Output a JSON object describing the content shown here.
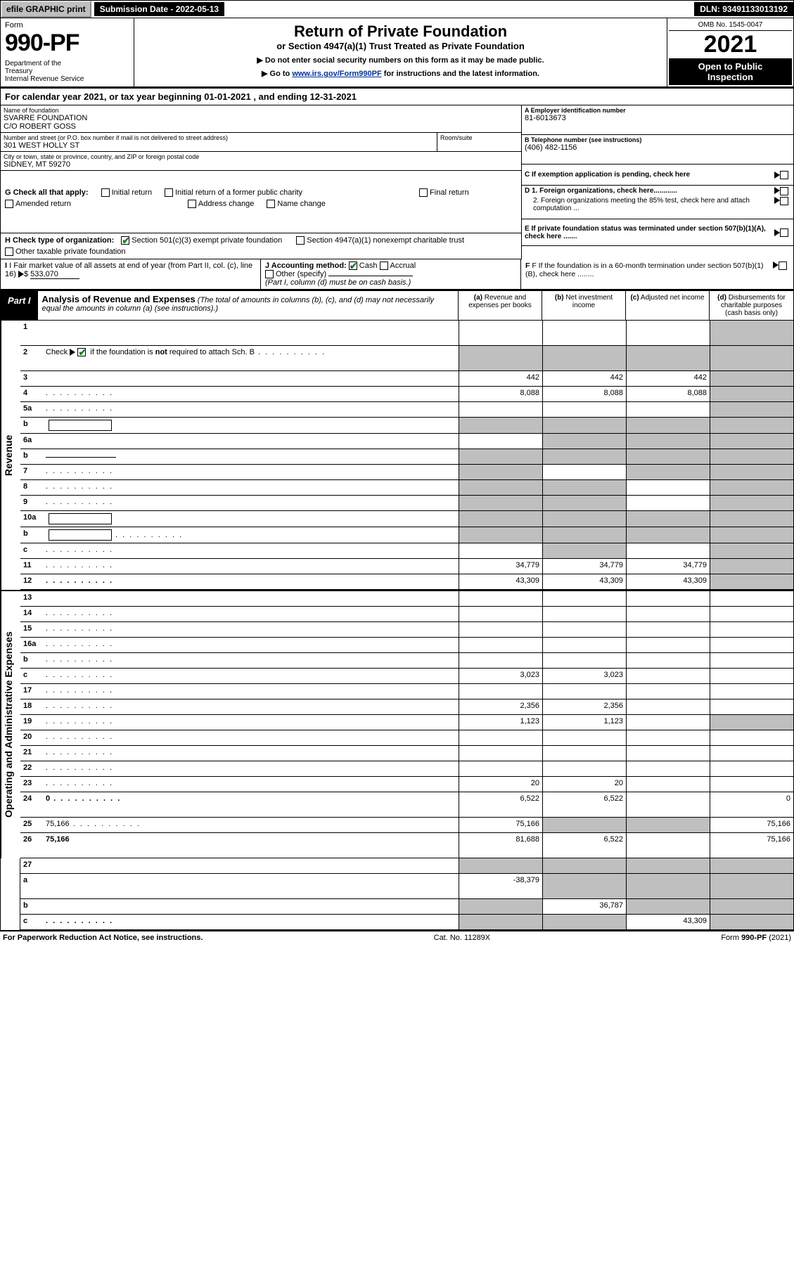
{
  "top": {
    "efile": "efile GRAPHIC print",
    "submission": "Submission Date - 2022-05-13",
    "dln": "DLN: 93491133013192"
  },
  "header": {
    "form_word": "Form",
    "form_num": "990-PF",
    "dept": "Department of the Treasury\nInternal Revenue Service",
    "title": "Return of Private Foundation",
    "subtitle": "or Section 4947(a)(1) Trust Treated as Private Foundation",
    "note1": "▶ Do not enter social security numbers on this form as it may be made public.",
    "note2_pre": "▶ Go to ",
    "note2_link": "www.irs.gov/Form990PF",
    "note2_post": " for instructions and the latest information.",
    "omb": "OMB No. 1545-0047",
    "year": "2021",
    "open": "Open to Public Inspection"
  },
  "cal_year": "For calendar year 2021, or tax year beginning 01-01-2021             , and ending 12-31-2021",
  "name_label": "Name of foundation",
  "name_val": "SVARRE FOUNDATION\nC/O ROBERT GOSS",
  "ein_label": "A Employer identification number",
  "ein_val": "81-6013673",
  "addr_label": "Number and street (or P.O. box number if mail is not delivered to street address)",
  "addr_val": "301 WEST HOLLY ST",
  "room_label": "Room/suite",
  "phone_label": "B Telephone number (see instructions)",
  "phone_val": "(406) 482-1156",
  "city_label": "City or town, state or province, country, and ZIP or foreign postal code",
  "city_val": "SIDNEY, MT  59270",
  "c_label": "C If exemption application is pending, check here",
  "g_label": "G Check all that apply:",
  "g_opts": [
    "Initial return",
    "Initial return of a former public charity",
    "Final return",
    "Amended return",
    "Address change",
    "Name change"
  ],
  "d1": "D 1. Foreign organizations, check here............",
  "d2": "2. Foreign organizations meeting the 85% test, check here and attach computation ...",
  "h_label": "H Check type of organization:",
  "h_opt1": "Section 501(c)(3) exempt private foundation",
  "h_opt2": "Section 4947(a)(1) nonexempt charitable trust",
  "h_opt3": "Other taxable private foundation",
  "e_label": "E  If private foundation status was terminated under section 507(b)(1)(A), check here .......",
  "i_label": "I Fair market value of all assets at end of year (from Part II, col. (c), line 16)",
  "i_val": "533,070",
  "j_label": "J Accounting method:",
  "j_cash": "Cash",
  "j_accrual": "Accrual",
  "j_other": "Other (specify)",
  "j_note": "(Part I, column (d) must be on cash basis.)",
  "f_label": "F  If the foundation is in a 60-month termination under section 507(b)(1)(B), check here ........",
  "part1_label": "Part I",
  "part1_title": "Analysis of Revenue and Expenses",
  "part1_sub": "(The total of amounts in columns (b), (c), and (d) may not necessarily equal the amounts in column (a) (see instructions).)",
  "col_a": "(a)  Revenue and expenses per books",
  "col_b": "(b)  Net investment income",
  "col_c": "(c)  Adjusted net income",
  "col_d": "(d)  Disbursements for charitable purposes (cash basis only)",
  "side_rev": "Revenue",
  "side_exp": "Operating and Administrative Expenses",
  "rows": {
    "r1": {
      "n": "1",
      "d": "",
      "a": "",
      "b": "",
      "c": "",
      "tall": true,
      "greyD": true
    },
    "r2": {
      "n": "2",
      "d": "",
      "a": "",
      "b": "",
      "c": "",
      "tall": true,
      "greyA": true,
      "greyB": true,
      "greyC": true,
      "greyD": true,
      "checked": true,
      "dots": true
    },
    "r3": {
      "n": "3",
      "d": "",
      "a": "442",
      "b": "442",
      "c": "442",
      "greyD": true
    },
    "r4": {
      "n": "4",
      "d": "",
      "a": "8,088",
      "b": "8,088",
      "c": "8,088",
      "greyD": true,
      "dots": true
    },
    "r5a": {
      "n": "5a",
      "d": "",
      "a": "",
      "b": "",
      "c": "",
      "greyD": true,
      "dots": true
    },
    "r5b": {
      "n": "b",
      "d": "",
      "a": "",
      "b": "",
      "c": "",
      "greyA": true,
      "greyB": true,
      "greyC": true,
      "greyD": true,
      "ibox": true
    },
    "r6a": {
      "n": "6a",
      "d": "",
      "a": "",
      "b": "",
      "c": "",
      "greyB": true,
      "greyC": true,
      "greyD": true
    },
    "r6b": {
      "n": "b",
      "d": "",
      "a": "",
      "b": "",
      "c": "",
      "greyA": true,
      "greyB": true,
      "greyC": true,
      "greyD": true,
      "uline": true
    },
    "r7": {
      "n": "7",
      "d": "",
      "a": "",
      "b": "",
      "c": "",
      "greyA": true,
      "greyC": true,
      "greyD": true,
      "dots": true
    },
    "r8": {
      "n": "8",
      "d": "",
      "a": "",
      "b": "",
      "c": "",
      "greyA": true,
      "greyB": true,
      "greyD": true,
      "dots": true
    },
    "r9": {
      "n": "9",
      "d": "",
      "a": "",
      "b": "",
      "c": "",
      "greyA": true,
      "greyB": true,
      "greyD": true,
      "dots": true
    },
    "r10a": {
      "n": "10a",
      "d": "",
      "a": "",
      "b": "",
      "c": "",
      "greyA": true,
      "greyB": true,
      "greyC": true,
      "greyD": true,
      "ibox": true
    },
    "r10b": {
      "n": "b",
      "d": "",
      "a": "",
      "b": "",
      "c": "",
      "greyA": true,
      "greyB": true,
      "greyC": true,
      "greyD": true,
      "ibox": true,
      "dots": true
    },
    "r10c": {
      "n": "c",
      "d": "",
      "a": "",
      "b": "",
      "c": "",
      "greyB": true,
      "greyD": true,
      "dots": true
    },
    "r11": {
      "n": "11",
      "d": "",
      "a": "34,779",
      "b": "34,779",
      "c": "34,779",
      "greyD": true,
      "dots": true
    },
    "r12": {
      "n": "12",
      "d": "",
      "a": "43,309",
      "b": "43,309",
      "c": "43,309",
      "bold": true,
      "greyD": true,
      "dots": true
    },
    "r13": {
      "n": "13",
      "d": "",
      "a": "",
      "b": "",
      "c": ""
    },
    "r14": {
      "n": "14",
      "d": "",
      "a": "",
      "b": "",
      "c": "",
      "dots": true
    },
    "r15": {
      "n": "15",
      "d": "",
      "a": "",
      "b": "",
      "c": "",
      "dots": true
    },
    "r16a": {
      "n": "16a",
      "d": "",
      "a": "",
      "b": "",
      "c": "",
      "dots": true
    },
    "r16b": {
      "n": "b",
      "d": "",
      "a": "",
      "b": "",
      "c": "",
      "dots": true
    },
    "r16c": {
      "n": "c",
      "d": "",
      "a": "3,023",
      "b": "3,023",
      "c": "",
      "dots": true
    },
    "r17": {
      "n": "17",
      "d": "",
      "a": "",
      "b": "",
      "c": "",
      "dots": true
    },
    "r18": {
      "n": "18",
      "d": "",
      "a": "2,356",
      "b": "2,356",
      "c": "",
      "dots": true
    },
    "r19": {
      "n": "19",
      "d": "",
      "a": "1,123",
      "b": "1,123",
      "c": "",
      "greyD": true,
      "dots": true
    },
    "r20": {
      "n": "20",
      "d": "",
      "a": "",
      "b": "",
      "c": "",
      "dots": true
    },
    "r21": {
      "n": "21",
      "d": "",
      "a": "",
      "b": "",
      "c": "",
      "dots": true
    },
    "r22": {
      "n": "22",
      "d": "",
      "a": "",
      "b": "",
      "c": "",
      "dots": true
    },
    "r23": {
      "n": "23",
      "d": "",
      "a": "20",
      "b": "20",
      "c": "",
      "dots": true
    },
    "r24": {
      "n": "24",
      "d": "0",
      "a": "6,522",
      "b": "6,522",
      "c": "",
      "bold": true,
      "tall": true,
      "dots": true
    },
    "r25": {
      "n": "25",
      "d": "75,166",
      "a": "75,166",
      "b": "",
      "c": "",
      "greyB": true,
      "greyC": true,
      "dots": true
    },
    "r26": {
      "n": "26",
      "d": "75,166",
      "a": "81,688",
      "b": "6,522",
      "c": "",
      "bold": true,
      "tall": true
    },
    "r27": {
      "n": "27",
      "d": "",
      "a": "",
      "b": "",
      "c": "",
      "greyA": true,
      "greyB": true,
      "greyC": true,
      "greyD": true
    },
    "r27a": {
      "n": "a",
      "d": "",
      "a": "-38,379",
      "b": "",
      "c": "",
      "bold": true,
      "greyB": true,
      "greyC": true,
      "greyD": true,
      "tall": true
    },
    "r27b": {
      "n": "b",
      "d": "",
      "a": "",
      "b": "36,787",
      "c": "",
      "bold": true,
      "greyA": true,
      "greyC": true,
      "greyD": true
    },
    "r27c": {
      "n": "c",
      "d": "",
      "a": "",
      "b": "",
      "c": "43,309",
      "bold": true,
      "greyA": true,
      "greyB": true,
      "greyD": true,
      "dots": true
    }
  },
  "footer": {
    "left": "For Paperwork Reduction Act Notice, see instructions.",
    "mid": "Cat. No. 11289X",
    "right": "Form 990-PF (2021)"
  }
}
